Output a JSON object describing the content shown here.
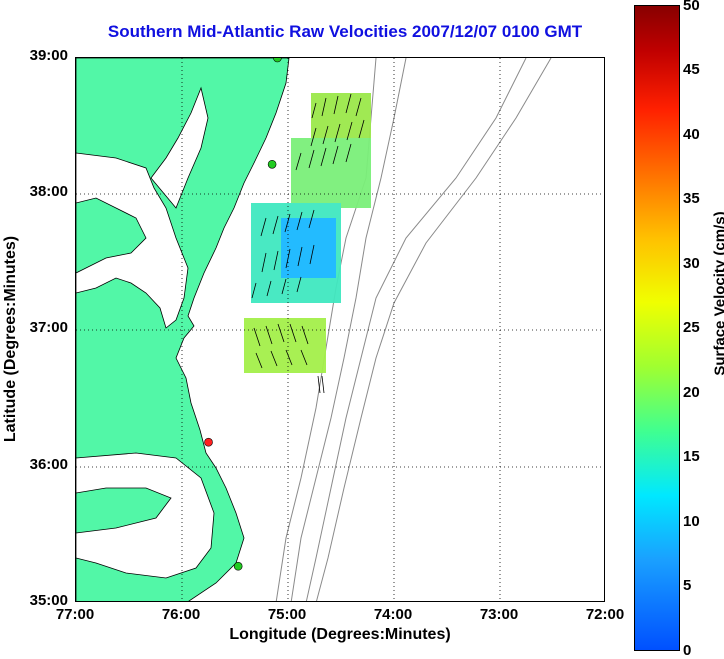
{
  "title": "Southern Mid-Atlantic Raw Velocities 2007/12/07 0100 GMT",
  "x_axis": {
    "label": "Longitude (Degrees:Minutes)",
    "ticks": [
      "77:00",
      "76:00",
      "75:00",
      "74:00",
      "73:00",
      "72:00"
    ]
  },
  "y_axis": {
    "label": "Latitude (Degrees:Minutes)",
    "ticks": [
      "39:00",
      "38:00",
      "37:00",
      "36:00",
      "35:00"
    ]
  },
  "colorbar": {
    "label": "Surface Velocity (cm/s)",
    "ticks": [
      "50",
      "45",
      "40",
      "35",
      "30",
      "25",
      "20",
      "15",
      "10",
      "5",
      "0"
    ],
    "range": [
      0,
      50
    ]
  },
  "colors": {
    "land": "#52f7a7",
    "title": "#1010e0",
    "grid": "#000000",
    "bathymetry": "#8a8a8a"
  },
  "map": {
    "lon_range": [
      -77,
      -72
    ],
    "lat_range": [
      35,
      39
    ],
    "grid": "dotted"
  },
  "stations": [
    {
      "lon": -75.1,
      "lat": 39.0,
      "color": "#22cc22"
    },
    {
      "lon": -75.15,
      "lat": 38.22,
      "color": "#22cc22"
    },
    {
      "lon": -75.75,
      "lat": 36.18,
      "color": "#ff2020"
    },
    {
      "lon": -75.47,
      "lat": 35.27,
      "color": "#22cc22"
    }
  ]
}
